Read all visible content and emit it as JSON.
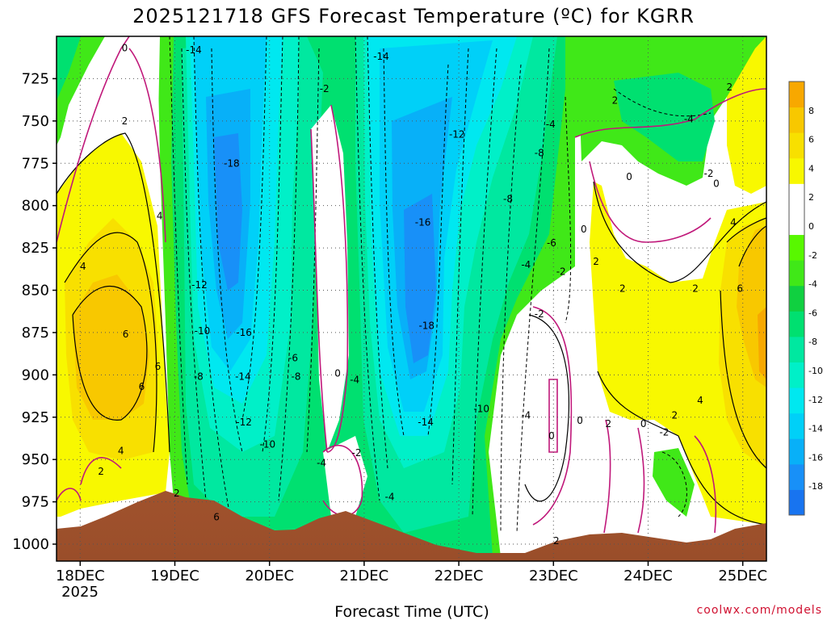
{
  "chart_data": {
    "type": "heatmap",
    "title": "2025121718 GFS Forecast Temperature (ºC) for KGRR",
    "xlabel": "Forecast Time (UTC)",
    "ylabel": "Pressure (hPa)",
    "x_ticks": [
      "18DEC",
      "19DEC",
      "20DEC",
      "21DEC",
      "22DEC",
      "23DEC",
      "24DEC",
      "25DEC"
    ],
    "x_year": "2025",
    "xlim_days_from_18dec": [
      -0.25,
      7.25
    ],
    "y_ticks": [
      "725",
      "750",
      "775",
      "800",
      "825",
      "850",
      "875",
      "900",
      "925",
      "950",
      "975",
      "1000"
    ],
    "ylim_hpa": [
      700,
      1010
    ],
    "colorbar": {
      "range": [
        -20,
        10
      ],
      "step": 2,
      "tick_labels": [
        "8",
        "6",
        "4",
        "2",
        "0",
        "-2",
        "-4",
        "-6",
        "-8",
        "-10",
        "-12",
        "-14",
        "-16",
        "-18"
      ],
      "colors": [
        "#1874f0",
        "#1890f8",
        "#08b0f8",
        "#00d0f8",
        "#00e8f0",
        "#00f0c8",
        "#00e8a0",
        "#00e070",
        "#10d040",
        "#40e818",
        "#58f800",
        "#ffffff",
        "#ffffff",
        "#f8f800",
        "#f8e000",
        "#f8c800",
        "#f8a800"
      ]
    },
    "contour_labels": [
      {
        "text": "0",
        "day": 0.47,
        "p": 707
      },
      {
        "text": "-14",
        "day": 1.2,
        "p": 708
      },
      {
        "text": "-14",
        "day": 3.18,
        "p": 712
      },
      {
        "text": "-2",
        "day": 2.58,
        "p": 731
      },
      {
        "text": "2",
        "day": 0.47,
        "p": 750
      },
      {
        "text": "-12",
        "day": 3.98,
        "p": 758
      },
      {
        "text": "-4",
        "day": 4.97,
        "p": 752
      },
      {
        "text": "2",
        "day": 5.65,
        "p": 738
      },
      {
        "text": "-4",
        "day": 6.43,
        "p": 749
      },
      {
        "text": "2",
        "day": 6.86,
        "p": 730
      },
      {
        "text": "-8",
        "day": 4.85,
        "p": 769
      },
      {
        "text": "-18",
        "day": 1.6,
        "p": 775
      },
      {
        "text": "0",
        "day": 5.8,
        "p": 783
      },
      {
        "text": "-2",
        "day": 6.64,
        "p": 781
      },
      {
        "text": "0",
        "day": 6.72,
        "p": 787
      },
      {
        "text": "-8",
        "day": 4.52,
        "p": 796
      },
      {
        "text": "4",
        "day": 0.84,
        "p": 806
      },
      {
        "text": "-16",
        "day": 3.62,
        "p": 810
      },
      {
        "text": "0",
        "day": 5.32,
        "p": 814
      },
      {
        "text": "-6",
        "day": 4.98,
        "p": 822
      },
      {
        "text": "4",
        "day": 6.9,
        "p": 810
      },
      {
        "text": "2",
        "day": 5.45,
        "p": 833
      },
      {
        "text": "4",
        "day": 0.03,
        "p": 836
      },
      {
        "text": "-4",
        "day": 4.71,
        "p": 835
      },
      {
        "text": "-2",
        "day": 5.08,
        "p": 839
      },
      {
        "text": "-12",
        "day": 1.26,
        "p": 847
      },
      {
        "text": "2",
        "day": 5.73,
        "p": 849
      },
      {
        "text": "2",
        "day": 6.5,
        "p": 849
      },
      {
        "text": "6",
        "day": 6.97,
        "p": 849
      },
      {
        "text": "-2",
        "day": 4.85,
        "p": 864
      },
      {
        "text": "6",
        "day": 0.48,
        "p": 876
      },
      {
        "text": "-10",
        "day": 1.29,
        "p": 874
      },
      {
        "text": "-16",
        "day": 1.73,
        "p": 875
      },
      {
        "text": "-18",
        "day": 3.66,
        "p": 871
      },
      {
        "text": "-6",
        "day": 2.25,
        "p": 890
      },
      {
        "text": "6",
        "day": 0.82,
        "p": 895
      },
      {
        "text": "-8",
        "day": 1.25,
        "p": 901
      },
      {
        "text": "-14",
        "day": 1.72,
        "p": 901
      },
      {
        "text": "-8",
        "day": 2.28,
        "p": 901
      },
      {
        "text": "0",
        "day": 2.72,
        "p": 899
      },
      {
        "text": "-4",
        "day": 2.9,
        "p": 903
      },
      {
        "text": "6",
        "day": 0.65,
        "p": 907
      },
      {
        "text": "4",
        "day": 6.55,
        "p": 915
      },
      {
        "text": "-10",
        "day": 4.24,
        "p": 920
      },
      {
        "text": "-4",
        "day": 4.71,
        "p": 924
      },
      {
        "text": "2",
        "day": 6.28,
        "p": 924
      },
      {
        "text": "-12",
        "day": 1.73,
        "p": 928
      },
      {
        "text": "-14",
        "day": 3.65,
        "p": 928
      },
      {
        "text": "0",
        "day": 5.28,
        "p": 927
      },
      {
        "text": "2",
        "day": 5.58,
        "p": 929
      },
      {
        "text": "0",
        "day": 5.95,
        "p": 929
      },
      {
        "text": "-2",
        "day": 6.17,
        "p": 934
      },
      {
        "text": "0",
        "day": 4.98,
        "p": 936
      },
      {
        "text": "-10",
        "day": 1.98,
        "p": 941
      },
      {
        "text": "-2",
        "day": 2.92,
        "p": 946
      },
      {
        "text": "4",
        "day": 0.43,
        "p": 945
      },
      {
        "text": "-4",
        "day": 2.55,
        "p": 952
      },
      {
        "text": "2",
        "day": 0.22,
        "p": 957
      },
      {
        "text": "2",
        "day": 1.02,
        "p": 970
      },
      {
        "text": "-4",
        "day": 3.27,
        "p": 972
      },
      {
        "text": "6",
        "day": 1.44,
        "p": 984
      },
      {
        "text": "2",
        "day": 5.03,
        "p": 998
      }
    ]
  },
  "credit": "coolwx.com/models"
}
